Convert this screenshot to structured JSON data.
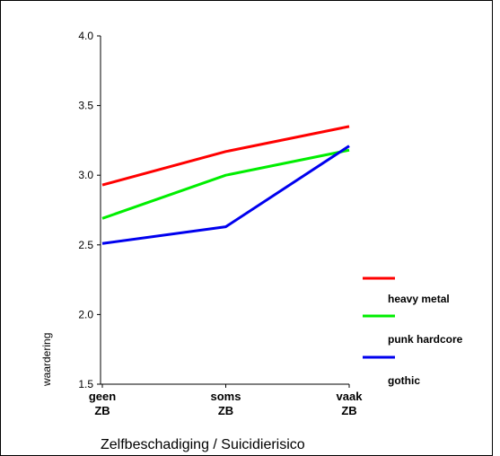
{
  "chart_data": {
    "type": "line",
    "title": "",
    "xlabel": "Zelfbeschadiging / Suicidierisico",
    "ylabel": "waardering",
    "categories": [
      [
        "geen",
        "ZB"
      ],
      [
        "soms",
        "ZB"
      ],
      [
        "vaak",
        "ZB"
      ]
    ],
    "ylim": [
      1.5,
      4.0
    ],
    "yticks": [
      "1.5",
      "2.0",
      "2.5",
      "3.0",
      "3.5",
      "4.0"
    ],
    "grid": false,
    "legend_position": "right",
    "legend_labels": [
      "",
      "heavy metal",
      "punk hardcore",
      "gothic"
    ],
    "series": [
      {
        "color": "#ff0000",
        "values": [
          2.93,
          3.17,
          3.35
        ]
      },
      {
        "color": "#00ee00",
        "values": [
          2.69,
          3.0,
          3.18
        ]
      },
      {
        "color": "#0000ee",
        "values": [
          2.51,
          2.63,
          3.21
        ]
      }
    ]
  }
}
